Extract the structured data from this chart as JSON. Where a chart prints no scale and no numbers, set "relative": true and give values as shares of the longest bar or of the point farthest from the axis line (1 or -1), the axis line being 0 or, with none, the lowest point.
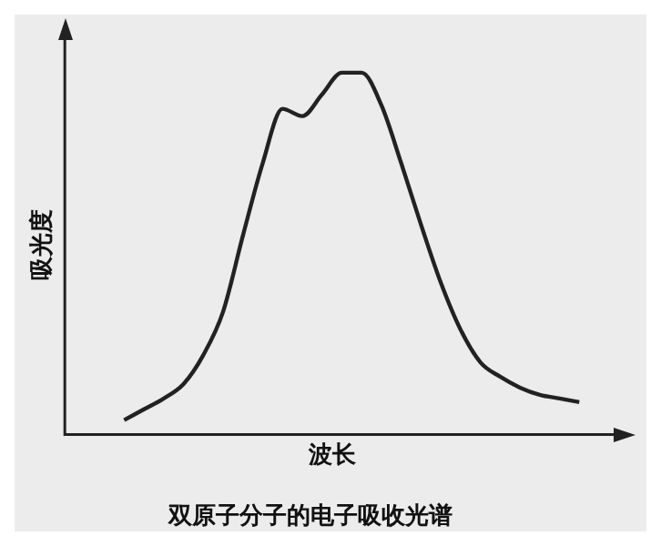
{
  "chart_data": {
    "type": "line",
    "relative": true,
    "title": "双原子分子的电子吸收光谱",
    "xlabel": "波长",
    "ylabel": "吸光度",
    "color": "#222222",
    "grid": false,
    "legend": false,
    "marker": "none",
    "line_style": "solid",
    "categories": [
      null,
      null,
      null,
      null,
      null,
      null,
      null,
      null,
      null,
      null,
      null,
      null,
      null,
      null,
      null,
      null,
      null,
      null,
      null,
      null,
      null,
      null,
      null,
      null,
      null,
      null,
      null,
      null
    ],
    "values": [
      null,
      null,
      null,
      0.04,
      0.07,
      0.1,
      0.14,
      0.22,
      0.34,
      0.55,
      0.75,
      0.9,
      0.88,
      0.94,
      1.0,
      1.0,
      0.91,
      0.75,
      0.58,
      0.42,
      0.29,
      0.2,
      0.16,
      0.13,
      0.11,
      0.1,
      0.09,
      null
    ]
  }
}
